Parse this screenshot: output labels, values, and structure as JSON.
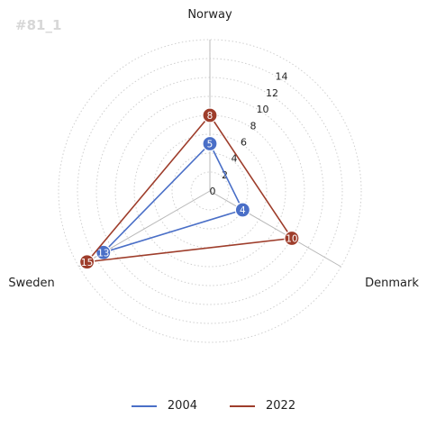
{
  "watermark": "#81_1",
  "chart_data": {
    "type": "radar",
    "axes": [
      "Norway",
      "Denmark",
      "Sweden"
    ],
    "radial_ticks": [
      0,
      2,
      4,
      6,
      8,
      10,
      12,
      14
    ],
    "rmax": 16,
    "grid": "dotted circles",
    "legend_position": "bottom-center",
    "series": [
      {
        "name": "2004",
        "values": [
          5,
          4,
          13
        ],
        "color": "#4a6fc7"
      },
      {
        "name": "2022",
        "values": [
          8,
          10,
          15
        ],
        "color": "#9e3d2b"
      }
    ]
  }
}
